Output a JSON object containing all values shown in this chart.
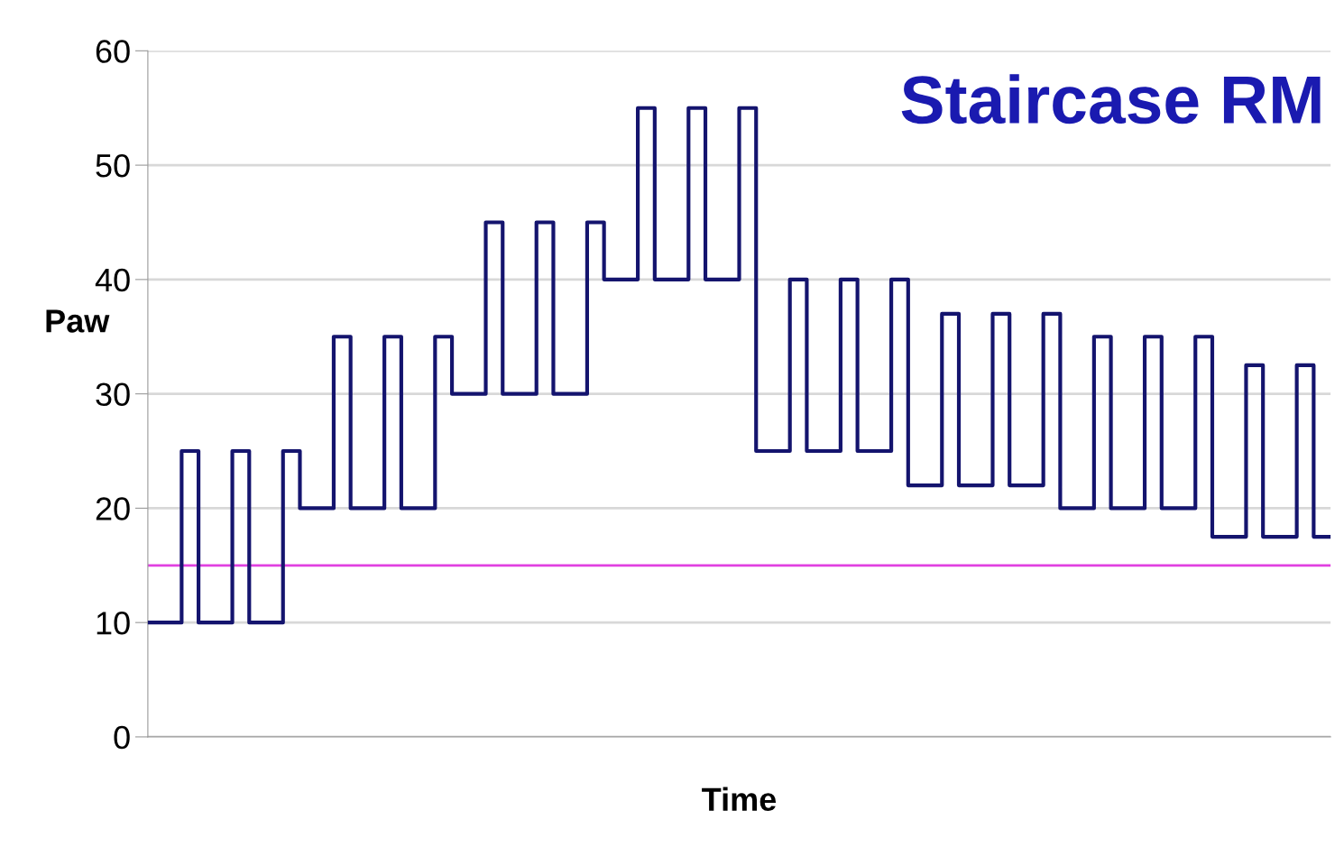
{
  "chart_data": {
    "type": "step",
    "title": "Staircase RM",
    "xlabel": "Time",
    "ylabel": "Paw",
    "categories": [
      null,
      null,
      null,
      null,
      null,
      null,
      null,
      null,
      null,
      null,
      null,
      null,
      null,
      null,
      null,
      null,
      null,
      null,
      null,
      null,
      null,
      null,
      null,
      null,
      null,
      null,
      null,
      null,
      null,
      null,
      null,
      null,
      null,
      null,
      null,
      null,
      null,
      null,
      null,
      null,
      null,
      null,
      null,
      null,
      null,
      null,
      null,
      null,
      null,
      null,
      null,
      null,
      null,
      null,
      null,
      null,
      null,
      null,
      null,
      null,
      null,
      null,
      null,
      null,
      null,
      null,
      null,
      null,
      null,
      null,
      null
    ],
    "series": [
      {
        "color": "#14146e",
        "values": [
          10,
          10,
          25,
          10,
          10,
          25,
          10,
          10,
          25,
          20,
          20,
          35,
          20,
          20,
          35,
          20,
          20,
          35,
          30,
          30,
          45,
          30,
          30,
          45,
          30,
          30,
          45,
          40,
          40,
          55,
          40,
          40,
          55,
          40,
          40,
          55,
          25,
          25,
          40,
          25,
          25,
          40,
          25,
          25,
          40,
          22,
          22,
          37,
          22,
          22,
          37,
          22,
          22,
          37,
          20,
          20,
          35,
          20,
          20,
          35,
          20,
          20,
          35,
          17.5,
          17.5,
          32.5,
          17.5,
          17.5,
          32.5,
          17.5,
          17.5
        ]
      }
    ],
    "ylim": [
      0,
      60
    ],
    "yticks": [
      0,
      10,
      20,
      30,
      40,
      50,
      60
    ],
    "grid": "y",
    "ref_lines": [
      {
        "axis": "y",
        "value": 15,
        "color": "#e040e0"
      }
    ]
  }
}
